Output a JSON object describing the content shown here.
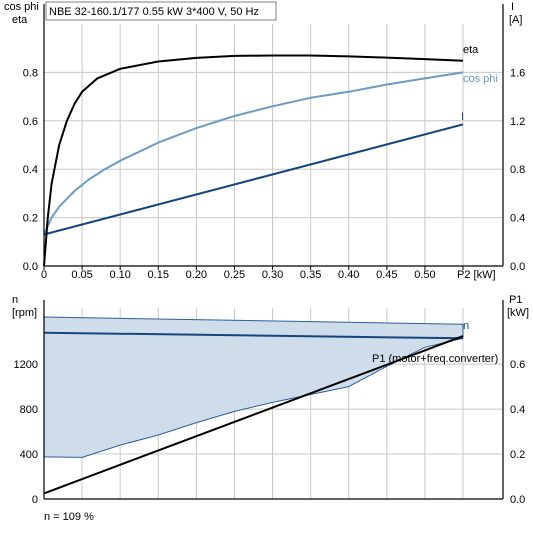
{
  "header_box": "NBE 32-160.1/177   0.55 kW   3*400 V, 50 Hz",
  "footnote": "n = 109 %",
  "colors": {
    "eta": "#000000",
    "cosphi": "#6d9ac2",
    "current": "#16457e",
    "speed": "#16457e",
    "band_fill": "#cfdcea",
    "band_edge": "#2d5f98",
    "grid": "#c8c8c8",
    "p1": "#000000"
  },
  "chart_data": [
    {
      "type": "line",
      "title": "NBE 32-160.1/177   0.55 kW   3*400 V, 50 Hz",
      "xlabel": "P2 [kW]",
      "ylabel_left": [
        "cos phi",
        "eta"
      ],
      "ylabel_right": [
        "I",
        "[A]"
      ],
      "xlim": [
        0,
        0.55
      ],
      "ylim_left": [
        0,
        1.0
      ],
      "ylim_right": [
        0,
        2.0
      ],
      "x_ticks": [
        "0",
        "0.05",
        "0.10",
        "0.15",
        "0.20",
        "0.25",
        "0.30",
        "0.35",
        "0.40",
        "0.45",
        "0.50"
      ],
      "x_tick_values": [
        0,
        0.05,
        0.1,
        0.15,
        0.2,
        0.25,
        0.3,
        0.35,
        0.4,
        0.45,
        0.5
      ],
      "y_ticks_left": [
        "0.0",
        "0.2",
        "0.4",
        "0.6",
        "0.8"
      ],
      "y_tick_values_left": [
        0,
        0.2,
        0.4,
        0.6,
        0.8
      ],
      "y_ticks_right": [
        "0.0",
        "0.4",
        "0.8",
        "1.2",
        "1.6"
      ],
      "y_tick_values_right": [
        0,
        0.4,
        0.8,
        1.2,
        1.6
      ],
      "grid": true,
      "series": [
        {
          "name": "eta",
          "axis": "left",
          "x": [
            0,
            0.005,
            0.01,
            0.02,
            0.03,
            0.04,
            0.05,
            0.07,
            0.1,
            0.15,
            0.2,
            0.25,
            0.3,
            0.35,
            0.4,
            0.45,
            0.5,
            0.55
          ],
          "y": [
            0,
            0.2,
            0.34,
            0.5,
            0.6,
            0.67,
            0.72,
            0.775,
            0.815,
            0.845,
            0.86,
            0.868,
            0.87,
            0.87,
            0.866,
            0.861,
            0.855,
            0.848
          ]
        },
        {
          "name": "cos phi",
          "axis": "left",
          "x": [
            0,
            0.01,
            0.02,
            0.04,
            0.06,
            0.08,
            0.1,
            0.15,
            0.2,
            0.25,
            0.3,
            0.35,
            0.4,
            0.45,
            0.5,
            0.55
          ],
          "y": [
            0.13,
            0.2,
            0.245,
            0.31,
            0.36,
            0.4,
            0.435,
            0.51,
            0.57,
            0.62,
            0.66,
            0.695,
            0.72,
            0.75,
            0.775,
            0.8
          ]
        },
        {
          "name": "I",
          "axis": "right",
          "x": [
            0,
            0.55
          ],
          "y": [
            0.26,
            1.17
          ]
        }
      ]
    },
    {
      "type": "area",
      "xlim": [
        0,
        0.55
      ],
      "ylabel_left": [
        "n",
        "[rpm]"
      ],
      "ylabel_right": [
        "P1",
        "[kW]"
      ],
      "ylim_left": [
        0,
        1700
      ],
      "ylim_right": [
        0,
        0.85
      ],
      "y_ticks_left": [
        "0",
        "400",
        "800",
        "1200"
      ],
      "y_tick_values_left": [
        0,
        400,
        800,
        1200
      ],
      "y_ticks_right": [
        "0.0",
        "0.2",
        "0.4",
        "0.6"
      ],
      "y_tick_values_right": [
        0,
        0.2,
        0.4,
        0.6
      ],
      "grid": true,
      "band": {
        "x_upper": [
          0,
          0.55
        ],
        "y_upper": [
          1620,
          1555
        ],
        "x_lower": [
          0,
          0.05,
          0.1,
          0.15,
          0.2,
          0.25,
          0.3,
          0.35,
          0.4,
          0.45,
          0.5,
          0.55
        ],
        "y_lower": [
          375,
          370,
          480,
          570,
          680,
          780,
          860,
          930,
          1000,
          1180,
          1350,
          1430
        ]
      },
      "series": [
        {
          "name": "n",
          "axis": "left",
          "x": [
            0,
            0.55
          ],
          "y": [
            1480,
            1430
          ]
        },
        {
          "name": "P1 (motor+freq.converter)",
          "axis": "right",
          "x": [
            0,
            0.55
          ],
          "y": [
            0.025,
            0.725
          ]
        }
      ]
    }
  ]
}
